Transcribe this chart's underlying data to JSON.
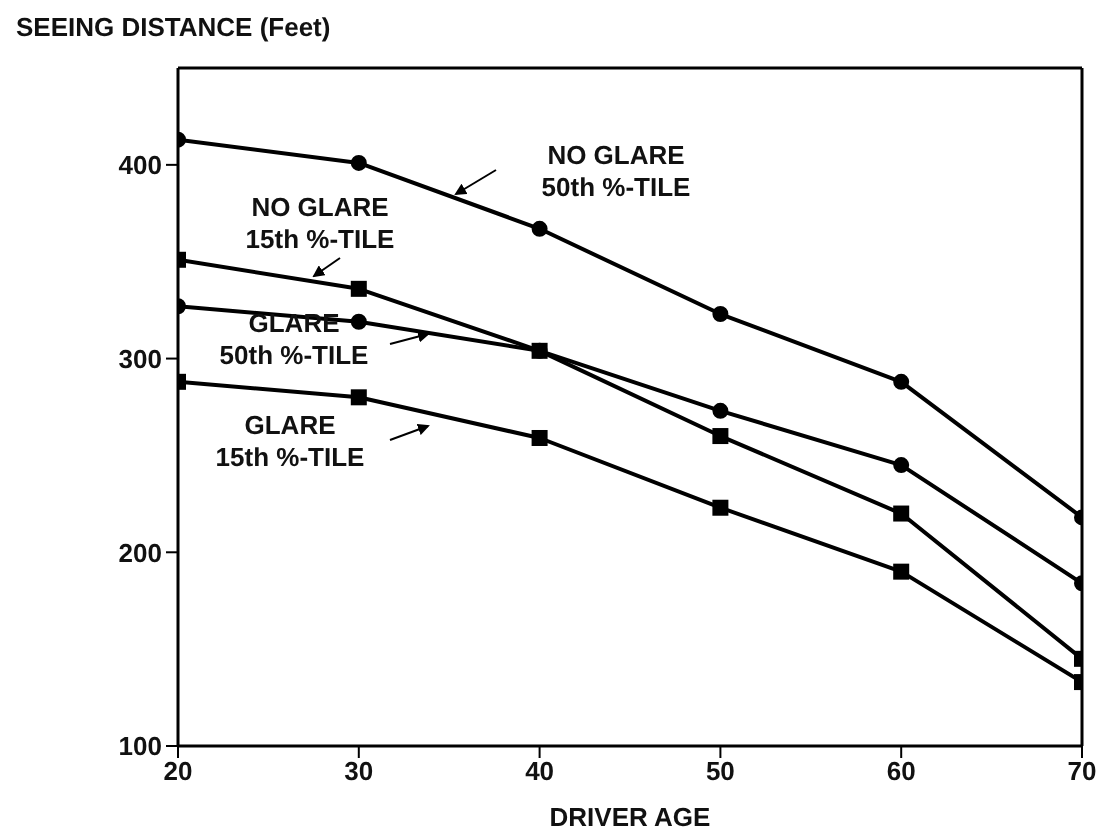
{
  "chart_data": {
    "type": "line",
    "title": "SEEING DISTANCE (Feet)",
    "xlabel": "DRIVER AGE",
    "x": [
      20,
      30,
      40,
      50,
      60,
      70
    ],
    "xlim": [
      20,
      70
    ],
    "xticks": [
      20,
      30,
      40,
      50,
      60,
      70
    ],
    "ylim": [
      100,
      450
    ],
    "yticks": [
      100,
      200,
      300,
      400
    ],
    "grid": false,
    "legend": "top left",
    "line_style": "solid",
    "series": [
      {
        "name": "NO GLARE 50th %-TILE",
        "color": "#000000",
        "marker": "circle",
        "values": [
          413,
          401,
          367,
          323,
          288,
          218
        ]
      },
      {
        "name": "NO GLARE 15th %-TILE",
        "color": "#000000",
        "marker": "square",
        "values": [
          351,
          336,
          304,
          260,
          220,
          145
        ]
      },
      {
        "name": "GLARE 50th %-TILE",
        "color": "#000000",
        "marker": "circle",
        "values": [
          327,
          319,
          304,
          273,
          245,
          184
        ]
      },
      {
        "name": "GLARE 15th %-TILE",
        "color": "#000000",
        "marker": "square",
        "values": [
          288,
          280,
          259,
          223,
          190,
          133
        ]
      }
    ]
  }
}
